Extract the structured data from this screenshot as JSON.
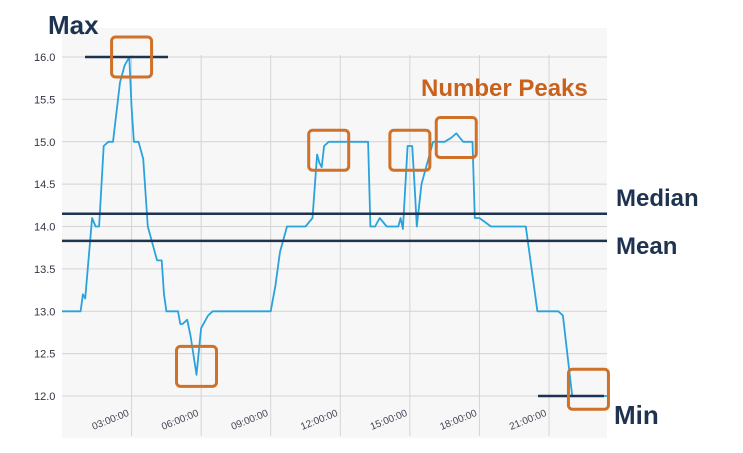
{
  "chart_data": {
    "type": "line",
    "title": "",
    "xlabel": "",
    "ylabel": "",
    "ylim": [
      12.0,
      16.0
    ],
    "xlim": [
      0,
      23.5
    ],
    "y_ticks": [
      "16.0",
      "15.5",
      "15.0",
      "14.5",
      "14.0",
      "13.5",
      "13.0",
      "12.5",
      "12.0"
    ],
    "x_ticks": [
      {
        "hour": 3,
        "label": "03:00:00"
      },
      {
        "hour": 6,
        "label": "06:00:00"
      },
      {
        "hour": 9,
        "label": "09:00:00"
      },
      {
        "hour": 12,
        "label": "12:00:00"
      },
      {
        "hour": 15,
        "label": "15:00:00"
      },
      {
        "hour": 18,
        "label": "18:00:00"
      },
      {
        "hour": 21,
        "label": "21:00:00"
      }
    ],
    "vertical_grid_hours": [
      3,
      6,
      9,
      12,
      15,
      18,
      21
    ],
    "grid": true,
    "series_color": "#29a3dc",
    "series": [
      {
        "name": "",
        "x": [
          0,
          0.8,
          0.9,
          1.0,
          1.3,
          1.45,
          1.6,
          1.8,
          2.0,
          2.2,
          2.5,
          2.7,
          2.9,
          3.0,
          3.1,
          3.3,
          3.5,
          3.7,
          3.9,
          4.1,
          4.3,
          4.4,
          4.5,
          4.7,
          5.0,
          5.1,
          5.2,
          5.4,
          5.55,
          5.8,
          6.0,
          6.3,
          6.5,
          7.0,
          8.0,
          9.0,
          9.2,
          9.4,
          9.7,
          10.0,
          10.5,
          10.8,
          11.0,
          11.1,
          11.2,
          11.3,
          11.5,
          11.8,
          12.0,
          12.5,
          13.2,
          13.3,
          13.5,
          13.7,
          14.0,
          14.3,
          14.5,
          14.6,
          14.7,
          14.9,
          15.1,
          15.2,
          15.3,
          15.5,
          15.7,
          16.0,
          16.5,
          16.8,
          17.0,
          17.3,
          17.5,
          17.6,
          17.7,
          17.8,
          18.0,
          18.5,
          19.0,
          19.3,
          19.5,
          20.0,
          20.5,
          21.0,
          21.2,
          21.4,
          21.6,
          22.0,
          22.5,
          23.5
        ],
        "y": [
          13.0,
          13.0,
          13.2,
          13.15,
          14.1,
          14.0,
          14.0,
          14.95,
          15.0,
          15.0,
          15.7,
          15.9,
          16.0,
          15.4,
          15.0,
          15.0,
          14.8,
          14.0,
          13.8,
          13.6,
          13.6,
          13.2,
          13.0,
          13.0,
          13.0,
          12.85,
          12.85,
          12.9,
          12.7,
          12.25,
          12.8,
          12.95,
          13.0,
          13.0,
          13.0,
          13.0,
          13.3,
          13.7,
          14.0,
          14.0,
          14.0,
          14.1,
          14.85,
          14.75,
          14.7,
          14.95,
          15.0,
          15.0,
          15.0,
          15.0,
          15.0,
          14.0,
          14.0,
          14.1,
          14.0,
          14.0,
          14.0,
          14.1,
          13.97,
          14.95,
          14.95,
          14.5,
          14.0,
          14.5,
          14.7,
          15.0,
          15.0,
          15.05,
          15.1,
          15.0,
          15.0,
          15.0,
          15.0,
          14.1,
          14.1,
          14.0,
          14.0,
          14.0,
          14.0,
          14.0,
          13.0,
          13.0,
          13.0,
          13.0,
          12.95,
          12.0,
          12.0,
          12.0
        ]
      }
    ],
    "reference_lines": [
      {
        "name": "Max",
        "value": 16.0
      },
      {
        "name": "Median",
        "value": 14.15
      },
      {
        "name": "Mean",
        "value": 13.83
      },
      {
        "name": "Min",
        "value": 12.0
      }
    ],
    "annotations": {
      "max_label": "Max",
      "min_label": "Min",
      "median_label": "Median",
      "mean_label": "Mean",
      "peaks_label": "Number Peaks"
    },
    "highlight_boxes": [
      {
        "hour": 3.0,
        "value": 16.0
      },
      {
        "hour": 5.8,
        "value": 12.35
      },
      {
        "hour": 11.5,
        "value": 14.9
      },
      {
        "hour": 15.0,
        "value": 14.9
      },
      {
        "hour": 17.0,
        "value": 15.05
      },
      {
        "hour": 22.7,
        "value": 12.08
      }
    ],
    "colors": {
      "reference": "#1d3350",
      "highlight": "#d0712a",
      "annotation_text": "#c8621c",
      "grid": "#d4d4d4"
    }
  }
}
